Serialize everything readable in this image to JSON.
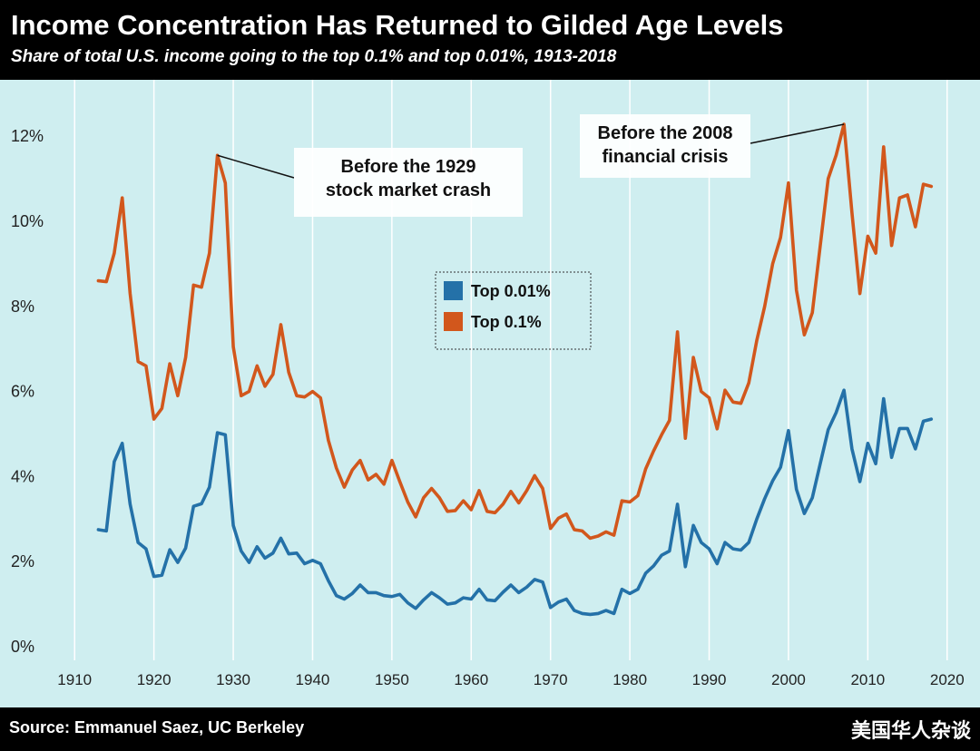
{
  "header": {
    "title": "Income Concentration Has Returned to Gilded Age Levels",
    "subtitle": "Share of total U.S. income going to the top 0.1% and top 0.01%, 1913-2018"
  },
  "footer": {
    "source": "Source: Emmanuel Saez, UC Berkeley",
    "brand": "美国华人杂谈"
  },
  "colors": {
    "top_0_01": "#2471a8",
    "top_0_1": "#d2571c",
    "plot_background": "#cfeef0",
    "grid": "#ffffff"
  },
  "chart_data": {
    "type": "line",
    "title": "",
    "xlabel": "",
    "ylabel": "",
    "xlim": [
      1907,
      2023
    ],
    "ylim": [
      0,
      12.6
    ],
    "grid": "vertical",
    "legend": "center",
    "x_ticks": [
      "1910",
      "1920",
      "1930",
      "1940",
      "1950",
      "1960",
      "1970",
      "1980",
      "1990",
      "2000",
      "2010",
      "2020"
    ],
    "y_ticks": [
      {
        "value": 0,
        "label": "0%"
      },
      {
        "value": 2,
        "label": "2%"
      },
      {
        "value": 4,
        "label": "4%"
      },
      {
        "value": 6,
        "label": "6%"
      },
      {
        "value": 8,
        "label": "8%"
      },
      {
        "value": 10,
        "label": "10%"
      },
      {
        "value": 12,
        "label": "12%"
      }
    ],
    "series": [
      {
        "name": "Top 0.01%",
        "color": "#2471a8",
        "x": [
          1913,
          1914,
          1915,
          1916,
          1917,
          1918,
          1919,
          1920,
          1921,
          1922,
          1923,
          1924,
          1925,
          1926,
          1927,
          1928,
          1929,
          1930,
          1931,
          1932,
          1933,
          1934,
          1935,
          1936,
          1937,
          1938,
          1939,
          1940,
          1941,
          1942,
          1943,
          1944,
          1945,
          1946,
          1947,
          1948,
          1949,
          1950,
          1951,
          1952,
          1953,
          1954,
          1955,
          1956,
          1957,
          1958,
          1959,
          1960,
          1961,
          1962,
          1963,
          1964,
          1965,
          1966,
          1967,
          1968,
          1969,
          1970,
          1971,
          1972,
          1973,
          1974,
          1975,
          1976,
          1977,
          1978,
          1979,
          1980,
          1981,
          1982,
          1983,
          1984,
          1985,
          1986,
          1987,
          1988,
          1989,
          1990,
          1991,
          1992,
          1993,
          1994,
          1995,
          1996,
          1997,
          1998,
          1999,
          2000,
          2001,
          2002,
          2003,
          2004,
          2005,
          2006,
          2007,
          2008,
          2009,
          2010,
          2011,
          2012,
          2013,
          2014,
          2015,
          2016,
          2017,
          2018
        ],
        "values": [
          2.75,
          2.72,
          4.35,
          4.78,
          3.35,
          2.45,
          2.3,
          1.65,
          1.68,
          2.28,
          1.98,
          2.32,
          3.3,
          3.36,
          3.75,
          5.03,
          4.98,
          2.85,
          2.25,
          1.98,
          2.35,
          2.08,
          2.2,
          2.55,
          2.18,
          2.2,
          1.95,
          2.03,
          1.95,
          1.55,
          1.2,
          1.12,
          1.25,
          1.45,
          1.27,
          1.27,
          1.2,
          1.18,
          1.23,
          1.03,
          0.9,
          1.1,
          1.27,
          1.15,
          1.0,
          1.03,
          1.15,
          1.12,
          1.35,
          1.1,
          1.08,
          1.28,
          1.45,
          1.27,
          1.4,
          1.58,
          1.52,
          0.92,
          1.05,
          1.12,
          0.85,
          0.78,
          0.76,
          0.78,
          0.85,
          0.78,
          1.35,
          1.25,
          1.35,
          1.73,
          1.9,
          2.15,
          2.25,
          3.35,
          1.88,
          2.85,
          2.45,
          2.3,
          1.95,
          2.45,
          2.3,
          2.27,
          2.45,
          3.0,
          3.48,
          3.9,
          4.22,
          5.08,
          3.7,
          3.13,
          3.5,
          4.3,
          5.1,
          5.5,
          6.03,
          4.65,
          3.88,
          4.78,
          4.3,
          5.83,
          4.45,
          5.13,
          5.13,
          4.65,
          5.3,
          5.35
        ]
      },
      {
        "name": "Top 0.1%",
        "color": "#d2571c",
        "x": [
          1913,
          1914,
          1915,
          1916,
          1917,
          1918,
          1919,
          1920,
          1921,
          1922,
          1923,
          1924,
          1925,
          1926,
          1927,
          1928,
          1929,
          1930,
          1931,
          1932,
          1933,
          1934,
          1935,
          1936,
          1937,
          1938,
          1939,
          1940,
          1941,
          1942,
          1943,
          1944,
          1945,
          1946,
          1947,
          1948,
          1949,
          1950,
          1951,
          1952,
          1953,
          1954,
          1955,
          1956,
          1957,
          1958,
          1959,
          1960,
          1961,
          1962,
          1963,
          1964,
          1965,
          1966,
          1967,
          1968,
          1969,
          1970,
          1971,
          1972,
          1973,
          1974,
          1975,
          1976,
          1977,
          1978,
          1979,
          1980,
          1981,
          1982,
          1983,
          1984,
          1985,
          1986,
          1987,
          1988,
          1989,
          1990,
          1991,
          1992,
          1993,
          1994,
          1995,
          1996,
          1997,
          1998,
          1999,
          2000,
          2001,
          2002,
          2003,
          2004,
          2005,
          2006,
          2007,
          2008,
          2009,
          2010,
          2011,
          2012,
          2013,
          2014,
          2015,
          2016,
          2017,
          2018
        ],
        "values": [
          8.6,
          8.58,
          9.25,
          10.55,
          8.3,
          6.7,
          6.6,
          5.35,
          5.6,
          6.65,
          5.9,
          6.8,
          8.5,
          8.45,
          9.25,
          11.55,
          10.9,
          7.05,
          5.9,
          6.0,
          6.6,
          6.12,
          6.4,
          7.57,
          6.45,
          5.9,
          5.87,
          6.0,
          5.85,
          4.85,
          4.2,
          3.75,
          4.15,
          4.38,
          3.92,
          4.05,
          3.82,
          4.38,
          3.88,
          3.4,
          3.05,
          3.5,
          3.72,
          3.5,
          3.18,
          3.2,
          3.43,
          3.22,
          3.67,
          3.18,
          3.15,
          3.35,
          3.65,
          3.38,
          3.67,
          4.02,
          3.72,
          2.78,
          3.02,
          3.12,
          2.75,
          2.72,
          2.55,
          2.6,
          2.7,
          2.62,
          3.43,
          3.4,
          3.55,
          4.18,
          4.6,
          4.98,
          5.32,
          7.4,
          4.9,
          6.8,
          6.0,
          5.85,
          5.12,
          6.03,
          5.75,
          5.72,
          6.2,
          7.2,
          8.0,
          9.0,
          9.62,
          10.9,
          8.38,
          7.33,
          7.85,
          9.42,
          11.0,
          11.55,
          12.28,
          10.2,
          8.3,
          9.65,
          9.25,
          11.75,
          9.43,
          10.55,
          10.62,
          9.87,
          10.87,
          10.82
        ]
      }
    ],
    "annotations": [
      {
        "lines": [
          "Before the 1929",
          "stock market crash"
        ],
        "x": 1928,
        "y": 11.55
      },
      {
        "lines": [
          "Before the 2008",
          "financial crisis"
        ],
        "x": 2007,
        "y": 12.28
      }
    ]
  }
}
